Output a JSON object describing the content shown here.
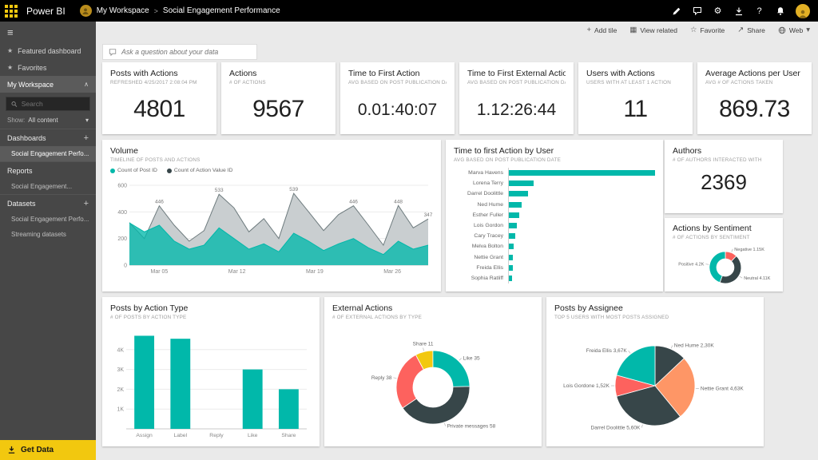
{
  "topbar": {
    "app_name": "Power BI",
    "workspace": "My Workspace",
    "separator": ">",
    "page": "Social Engagement Performance"
  },
  "toolbar": {
    "add_tile": "Add tile",
    "view_related": "View related",
    "favorite": "Favorite",
    "share": "Share",
    "web": "Web"
  },
  "qna_placeholder": "Ask a question about your data",
  "sidebar": {
    "featured_dashboard": "Featured dashboard",
    "favorites": "Favorites",
    "my_workspace": "My Workspace",
    "search_placeholder": "Search",
    "show_label": "Show:",
    "show_value": "All content",
    "dashboards_header": "Dashboards",
    "dashboards_item": "Social Engagement Perfo...",
    "reports_header": "Reports",
    "reports_item": "Social Engagement...",
    "datasets_header": "Datasets",
    "datasets_item_1": "Social Engagement Perfo...",
    "datasets_item_2": "Streaming datasets",
    "get_data": "Get Data"
  },
  "icons": {
    "hamburger": "≡",
    "star": "★",
    "star_outline": "☆",
    "chevron_up": "∧",
    "caret_down": "▾",
    "plus": "+",
    "grid": "▦",
    "share_arrow": "↗",
    "gear": "⚙",
    "help": "?"
  },
  "colors": {
    "accent_teal": "#01B8AA",
    "dark": "#374649",
    "red": "#FD625E",
    "yellow": "#F2C80F",
    "orange": "#FE9666"
  },
  "kpis": [
    {
      "title": "Posts with Actions",
      "subtitle": "REFRESHED 4/25/2017 2:08:04 PM",
      "value": "4801"
    },
    {
      "title": "Actions",
      "subtitle": "# OF ACTIONS",
      "value": "9567"
    },
    {
      "title": "Time to First Action",
      "subtitle": "AVG BASED ON POST PUBLICATION DATE",
      "value": "0.01:40:07"
    },
    {
      "title": "Time to First External Action",
      "subtitle": "AVG BASED ON POST PUBLICATION DATE",
      "value": "1.12:26:44"
    },
    {
      "title": "Users with Actions",
      "subtitle": "USERS WITH AT LEAST 1 ACTION",
      "value": "11"
    },
    {
      "title": "Average Actions per User",
      "subtitle": "AVG # OF ACTIONS TAKEN",
      "value": "869.73"
    }
  ],
  "authors_card": {
    "title": "Authors",
    "subtitle": "# OF AUTHORS INTERACTED WITH",
    "value": "2369"
  },
  "chart_data": [
    {
      "id": "volume",
      "type": "area",
      "title": "Volume",
      "subtitle": "TIMELINE OF POSTS AND ACTIONS",
      "legend": [
        {
          "name": "Count of Post ID",
          "color": "#01B8AA"
        },
        {
          "name": "Count of Action Value ID",
          "color": "#374649"
        }
      ],
      "x_tick_labels": [
        "Mar 05",
        "Mar 12",
        "Mar 19",
        "Mar 26"
      ],
      "x_tick_pos": [
        0.1,
        0.36,
        0.62,
        0.88
      ],
      "y_ticks": [
        0,
        200,
        400,
        600
      ],
      "y_max": 600,
      "series": [
        {
          "name": "Count of Action Value ID",
          "fill": "#C9CED0",
          "stroke": "#6E7B7E",
          "values": [
            320,
            200,
            446,
            300,
            180,
            260,
            533,
            430,
            250,
            350,
            200,
            539,
            400,
            260,
            380,
            446,
            300,
            150,
            448,
            280,
            347
          ]
        },
        {
          "name": "Count of Post ID",
          "fill": "rgba(1,184,170,0.78)",
          "stroke": "#01B8AA",
          "values": [
            318,
            250,
            300,
            180,
            120,
            150,
            280,
            200,
            120,
            160,
            100,
            240,
            180,
            110,
            160,
            200,
            130,
            80,
            180,
            120,
            150
          ]
        }
      ],
      "point_labels": [
        {
          "index": 2,
          "text": "446"
        },
        {
          "index": 6,
          "text": "533"
        },
        {
          "index": 11,
          "text": "539"
        },
        {
          "index": 15,
          "text": "446"
        },
        {
          "index": 18,
          "text": "448"
        },
        {
          "index": 20,
          "text": "347"
        }
      ]
    },
    {
      "id": "time_to_first_action_by_user",
      "type": "bar",
      "title": "Time to first Action by User",
      "subtitle": "AVG BASED ON POST PUBLICATION DATE",
      "color": "#01B8AA",
      "categories": [
        "Marva Havens",
        "Lorena Terry",
        "Darrel Doolittle",
        "Ned Hume",
        "Esther Fuller",
        "Lois Gordon",
        "Cary Tracey",
        "Melva Bolton",
        "Nettie Grant",
        "Freida Ellis",
        "Sophia Ratliff"
      ],
      "values": [
        100,
        17,
        13,
        9,
        7,
        5.5,
        4.5,
        3.5,
        3,
        2.5,
        2
      ],
      "x_max": 100
    },
    {
      "id": "actions_by_sentiment",
      "type": "pie",
      "title": "Actions by Sentiment",
      "subtitle": "# OF ACTIONS BY SENTIMENT",
      "start_deg": 0,
      "slices": [
        {
          "name": "Negative",
          "label": "Negative 1.15K",
          "value": 1.15,
          "color": "#FD625E"
        },
        {
          "name": "Neutral",
          "label": "Neutral 4.11K",
          "value": 4.11,
          "color": "#374649"
        },
        {
          "name": "Positive",
          "label": "Positive 4.2K",
          "value": 4.2,
          "color": "#01B8AA"
        }
      ]
    },
    {
      "id": "posts_by_action_type",
      "type": "bar",
      "title": "Posts by Action Type",
      "subtitle": "# OF POSTS BY ACTION TYPE",
      "color": "#01B8AA",
      "categories": [
        "Assign",
        "Label",
        "Reply",
        "Like",
        "Share"
      ],
      "values": [
        4.7,
        4.55,
        0,
        3,
        2
      ],
      "y_ticks": [
        {
          "v": 1,
          "label": "1K"
        },
        {
          "v": 2,
          "label": "2K"
        },
        {
          "v": 3,
          "label": "3K"
        },
        {
          "v": 4,
          "label": "4K"
        }
      ],
      "y_max": 5
    },
    {
      "id": "external_actions",
      "type": "pie",
      "title": "External Actions",
      "subtitle": "# OF EXTERNAL ACTIONS BY TYPE",
      "start_deg": -28,
      "slices": [
        {
          "name": "Share",
          "label": "Share 11",
          "value": 11,
          "color": "#F2C80F"
        },
        {
          "name": "Like",
          "label": "Like 35",
          "value": 35,
          "color": "#01B8AA"
        },
        {
          "name": "Private messages",
          "label": "Private messages 58",
          "value": 58,
          "color": "#374649"
        },
        {
          "name": "Reply",
          "label": "Reply 38",
          "value": 38,
          "color": "#FD625E"
        }
      ]
    },
    {
      "id": "posts_by_assignee",
      "type": "pie",
      "title": "Posts by Assignee",
      "subtitle": "TOP 5 USERS WITH MOST POSTS ASSIGNED",
      "start_deg": 0,
      "slices": [
        {
          "name": "Ned Hume",
          "label": "Ned Hume 2,30K",
          "value": 2.3,
          "color": "#374649"
        },
        {
          "name": "Nettie Grant",
          "label": "Nettie Grant 4,63K",
          "value": 4.63,
          "color": "#FE9666"
        },
        {
          "name": "Darrel Doolittle",
          "label": "Darrel Doolittle 5,60K",
          "value": 5.6,
          "color": "#374649"
        },
        {
          "name": "Lois Gordone",
          "label": "Lois Gordone 1,52K",
          "value": 1.52,
          "color": "#FD625E"
        },
        {
          "name": "Freida Ellis",
          "label": "Freida Ellis 3,67K",
          "value": 3.67,
          "color": "#01B8AA"
        }
      ]
    }
  ]
}
